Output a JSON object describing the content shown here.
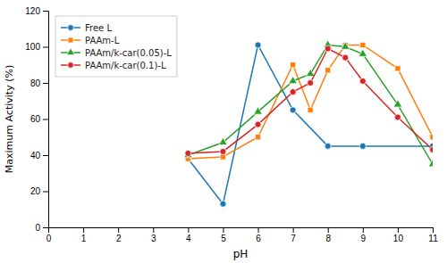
{
  "chart_data": {
    "type": "line",
    "xlabel": "pH",
    "ylabel": "Maximum Activity (%)",
    "xlim": [
      0,
      11
    ],
    "ylim": [
      0,
      120
    ],
    "xticks": [
      0,
      1,
      2,
      3,
      4,
      5,
      6,
      7,
      8,
      9,
      10,
      11
    ],
    "yticks": [
      0,
      20,
      40,
      60,
      80,
      100,
      120
    ],
    "legend": "upper-left",
    "grid": false,
    "line_style": "solid",
    "series": [
      {
        "name": "Free L",
        "marker": "circle",
        "x": [
          4,
          5,
          6,
          7,
          8,
          9,
          11
        ],
        "values": [
          38,
          13,
          101,
          65,
          45,
          45,
          45
        ]
      },
      {
        "name": "PAAm-L",
        "marker": "square",
        "x": [
          4,
          5,
          6,
          7,
          7.5,
          8,
          8.5,
          9,
          10,
          11
        ],
        "values": [
          38,
          39,
          50,
          90,
          65,
          87,
          101,
          101,
          88,
          50
        ]
      },
      {
        "name": "PAAm/k-car(0.05)-L",
        "marker": "triangle",
        "x": [
          4,
          5,
          6,
          7,
          7.5,
          8,
          8.5,
          9,
          10,
          11
        ],
        "values": [
          40,
          47,
          64,
          81,
          85,
          101,
          100,
          96,
          68,
          35
        ]
      },
      {
        "name": "PAAm/k-car(0.1)-L",
        "marker": "circle",
        "x": [
          4,
          5,
          6,
          7,
          7.5,
          8,
          8.5,
          9,
          10,
          11
        ],
        "values": [
          41,
          42,
          57,
          75,
          80,
          99,
          94,
          81,
          61,
          43
        ]
      }
    ]
  }
}
